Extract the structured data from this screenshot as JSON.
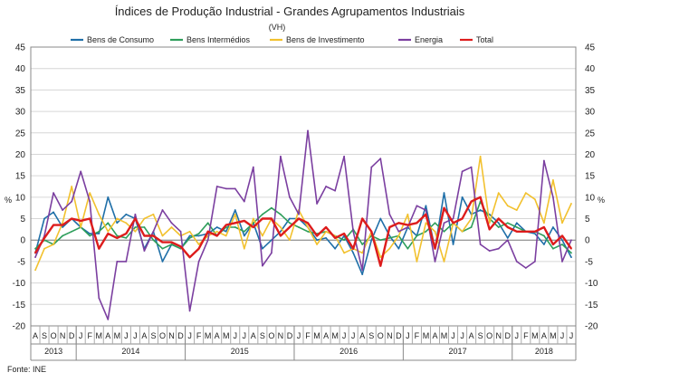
{
  "chart_data": {
    "type": "line",
    "title": "Índices de Produção Industrial - Grandes Agrupamentos Industriais",
    "subtitle": "(VH)",
    "ylabel_left": "%",
    "ylabel_right": "%",
    "ylim": [
      -20,
      45
    ],
    "yticks": [
      45,
      40,
      35,
      30,
      25,
      20,
      15,
      10,
      5,
      0,
      -5,
      -10,
      -15,
      -20
    ],
    "grid": true,
    "legend_position": "top",
    "source": "Fonte: INE",
    "months": [
      "A",
      "S",
      "O",
      "N",
      "D",
      "J",
      "F",
      "M",
      "A",
      "M",
      "J",
      "J",
      "A",
      "S",
      "O",
      "N",
      "D",
      "J",
      "F",
      "M",
      "A",
      "M",
      "J",
      "J",
      "A",
      "S",
      "O",
      "N",
      "D",
      "J",
      "F",
      "M",
      "A",
      "M",
      "J",
      "J",
      "A",
      "S",
      "O",
      "N",
      "D",
      "J",
      "F",
      "M",
      "A",
      "M",
      "J",
      "J",
      "A",
      "S",
      "O",
      "N",
      "D",
      "J",
      "F",
      "M",
      "A",
      "M",
      "J",
      "J"
    ],
    "years": [
      {
        "label": "2013",
        "start": 0,
        "end": 4
      },
      {
        "label": "2014",
        "start": 5,
        "end": 16
      },
      {
        "label": "2015",
        "start": 17,
        "end": 28
      },
      {
        "label": "2016",
        "start": 29,
        "end": 40
      },
      {
        "label": "2017",
        "start": 41,
        "end": 52
      },
      {
        "label": "2018",
        "start": 53,
        "end": 59
      }
    ],
    "series": [
      {
        "name": "Bens de Consumo",
        "color": "#1f6fa8",
        "values": [
          -3,
          5,
          6.5,
          3,
          5,
          3,
          1.5,
          1.5,
          10,
          4,
          6,
          5,
          -2,
          2,
          -5,
          -1,
          -2,
          1,
          1,
          1.5,
          3,
          2,
          7,
          1,
          4,
          -2,
          0,
          2,
          5,
          5,
          3,
          0,
          0.5,
          -2,
          1,
          -3,
          -8,
          0,
          5,
          1,
          -2,
          3,
          1,
          8,
          -2,
          11,
          -1,
          10,
          6,
          7,
          6,
          4,
          0.5,
          4,
          2,
          1.5,
          -1,
          3,
          0,
          -4
        ]
      },
      {
        "name": "Bens Intermédios",
        "color": "#2e9e5b",
        "values": [
          -2,
          0,
          -1,
          1,
          2,
          3,
          1,
          2,
          4,
          1,
          0.5,
          3,
          3,
          0,
          -2,
          -1,
          -2,
          0.5,
          1.5,
          4,
          1,
          3,
          3,
          2,
          4,
          6,
          7.5,
          6,
          4,
          3,
          2,
          1.5,
          2,
          1,
          0,
          2.5,
          -1,
          1,
          0,
          0.5,
          1,
          -2,
          1,
          2,
          4,
          2,
          4,
          2,
          3,
          9,
          5,
          3,
          4,
          3,
          2,
          2,
          1,
          -2,
          -1,
          -3
        ]
      },
      {
        "name": "Bens de Investimento",
        "color": "#f2c12e",
        "values": [
          -7,
          -2,
          -1,
          4,
          12.5,
          3,
          11,
          6,
          2,
          5,
          4,
          2,
          5,
          6,
          1,
          3,
          1,
          2,
          -1,
          1,
          2,
          1,
          6,
          -2,
          5,
          1,
          5,
          3,
          0,
          7,
          3,
          -1,
          2,
          1,
          -3,
          -2,
          -3,
          2,
          -4,
          -2,
          1,
          6,
          -5,
          4,
          2,
          -5,
          4,
          2,
          5,
          19.5,
          4,
          11,
          8,
          7,
          11,
          9.5,
          4,
          14,
          4,
          8.5
        ]
      },
      {
        "name": "Energia",
        "color": "#7b3fa0",
        "values": [
          -4,
          1,
          11,
          7,
          9,
          16,
          9,
          -13.5,
          -18.5,
          -5,
          -5,
          6,
          -2.5,
          2,
          7,
          4,
          2,
          -16.5,
          -5,
          0,
          12.5,
          12,
          12,
          9,
          17,
          -6,
          -3,
          19.5,
          10,
          6,
          25.5,
          8.5,
          12.5,
          11.5,
          19.5,
          2,
          -7,
          17,
          19,
          6,
          2,
          3,
          8,
          7,
          -5,
          4,
          5,
          16,
          17,
          -1,
          -2.5,
          -2,
          0,
          -5,
          -6.5,
          -5,
          18.5,
          10,
          -5,
          0
        ]
      },
      {
        "name": "Total",
        "color": "#dd1c1c",
        "values": [
          -3,
          0.5,
          3.5,
          3.5,
          5,
          4.5,
          5,
          -2,
          1.5,
          0.5,
          1.5,
          5,
          1,
          1,
          -0.5,
          -0.5,
          -1.5,
          -4,
          -2,
          2,
          1,
          3.5,
          4,
          4.5,
          3,
          5,
          5,
          1,
          3,
          5,
          4,
          1,
          3,
          0.5,
          1.5,
          -2,
          5,
          2,
          -6,
          3,
          4,
          3.5,
          4,
          6,
          -2,
          7.5,
          4,
          5,
          9,
          10,
          2.5,
          5,
          3,
          2,
          2,
          2,
          3,
          -1,
          1,
          -2
        ]
      }
    ]
  }
}
